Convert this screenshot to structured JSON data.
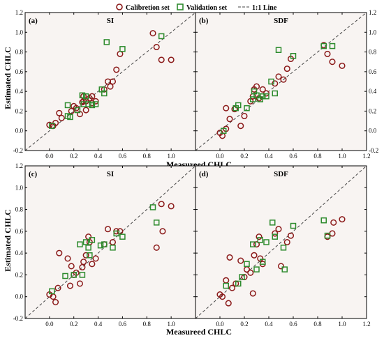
{
  "legend": {
    "calibration_label": "Calibretion set",
    "validation_label": "Validation set",
    "line_label": "1:1 Line"
  },
  "colors": {
    "calibration": "#8b1a1a",
    "validation": "#2e8b2e",
    "panel_bg": "#f8f4f2",
    "line": "#444444"
  },
  "axes": {
    "xlabel": "Measureed CHLC",
    "ylabel": "Estimated CHLC"
  },
  "chart_data": [
    {
      "type": "scatter",
      "panel": "(a)",
      "title": "SI",
      "xlim": [
        -0.2,
        1.2
      ],
      "ylim": [
        -0.2,
        1.2
      ],
      "xticks": [
        "0.0",
        "0.2",
        "0.4",
        "0.6",
        "0.8",
        "1.0"
      ],
      "yticks": [
        "-0.2",
        "0.0",
        "0.2",
        "0.4",
        "0.6",
        "0.8",
        "1.0",
        "1.2"
      ],
      "series": [
        {
          "name": "Calibretion set",
          "marker": "circle",
          "x": [
            0.0,
            0.03,
            0.05,
            0.08,
            0.1,
            0.18,
            0.2,
            0.22,
            0.25,
            0.27,
            0.28,
            0.3,
            0.3,
            0.33,
            0.35,
            0.38,
            0.45,
            0.48,
            0.5,
            0.52,
            0.55,
            0.58,
            0.85,
            0.88,
            0.92,
            1.0,
            0.35,
            0.28
          ],
          "y": [
            0.06,
            0.05,
            0.08,
            0.18,
            0.13,
            0.2,
            0.25,
            0.23,
            0.17,
            0.29,
            0.35,
            0.21,
            0.3,
            0.33,
            0.28,
            0.3,
            0.42,
            0.5,
            0.45,
            0.5,
            0.62,
            0.78,
            0.99,
            0.85,
            0.72,
            0.72,
            0.35,
            0.3
          ]
        },
        {
          "name": "Validation set",
          "marker": "square",
          "x": [
            0.02,
            0.15,
            0.15,
            0.17,
            0.23,
            0.27,
            0.28,
            0.3,
            0.32,
            0.35,
            0.38,
            0.43,
            0.45,
            0.47,
            0.6,
            0.92
          ],
          "y": [
            0.05,
            0.15,
            0.26,
            0.14,
            0.21,
            0.36,
            0.27,
            0.35,
            0.27,
            0.26,
            0.27,
            0.42,
            0.38,
            0.9,
            0.83,
            0.96
          ]
        }
      ]
    },
    {
      "type": "scatter",
      "panel": "(b)",
      "title": "SDF",
      "xlim": [
        -0.2,
        1.2
      ],
      "ylim": [
        -0.2,
        1.2
      ],
      "xticks": [
        "0.0",
        "0.2",
        "0.4",
        "0.6",
        "0.8",
        "1.0"
      ],
      "yticks": [
        "-0.2",
        "0.0",
        "0.2",
        "0.4",
        "0.6",
        "0.8",
        "1.0",
        "1.2"
      ],
      "series": [
        {
          "name": "Calibretion set",
          "marker": "circle",
          "x": [
            0.0,
            0.02,
            0.05,
            0.05,
            0.08,
            0.12,
            0.17,
            0.2,
            0.25,
            0.27,
            0.28,
            0.3,
            0.32,
            0.35,
            0.38,
            0.45,
            0.48,
            0.52,
            0.55,
            0.58,
            0.85,
            0.88,
            0.92,
            1.0
          ],
          "y": [
            -0.02,
            -0.05,
            0.02,
            0.23,
            0.12,
            0.22,
            0.05,
            0.15,
            0.3,
            0.35,
            0.42,
            0.45,
            0.33,
            0.42,
            0.38,
            0.48,
            0.55,
            0.52,
            0.63,
            0.73,
            0.87,
            0.78,
            0.7,
            0.66
          ]
        },
        {
          "name": "Validation set",
          "marker": "square",
          "x": [
            0.03,
            0.13,
            0.15,
            0.22,
            0.27,
            0.28,
            0.3,
            0.33,
            0.35,
            0.38,
            0.42,
            0.45,
            0.48,
            0.6,
            0.85,
            0.92
          ],
          "y": [
            0.0,
            0.23,
            0.26,
            0.23,
            0.32,
            0.4,
            0.36,
            0.32,
            0.35,
            0.35,
            0.5,
            0.38,
            0.82,
            0.76,
            0.86,
            0.86
          ]
        }
      ]
    },
    {
      "type": "scatter",
      "panel": "(c)",
      "title": "SI",
      "xlim": [
        -0.2,
        1.2
      ],
      "ylim": [
        -0.2,
        1.2
      ],
      "xticks": [
        "0.0",
        "0.2",
        "0.4",
        "0.6",
        "0.8",
        "1.0"
      ],
      "yticks": [
        "-0.2",
        "0.0",
        "0.2",
        "0.4",
        "0.6",
        "0.8",
        "1.0",
        "1.2"
      ],
      "series": [
        {
          "name": "Calibretion set",
          "marker": "circle",
          "x": [
            0.0,
            0.03,
            0.05,
            0.07,
            0.08,
            0.15,
            0.17,
            0.18,
            0.2,
            0.22,
            0.25,
            0.27,
            0.28,
            0.3,
            0.32,
            0.33,
            0.35,
            0.38,
            0.45,
            0.48,
            0.52,
            0.55,
            0.58,
            0.88,
            0.92,
            1.0,
            0.93
          ],
          "y": [
            0.02,
            0.0,
            -0.05,
            0.08,
            0.4,
            0.35,
            0.1,
            0.28,
            0.2,
            0.22,
            0.12,
            0.27,
            0.32,
            0.38,
            0.55,
            0.5,
            0.3,
            0.35,
            0.48,
            0.62,
            0.5,
            0.6,
            0.6,
            0.45,
            0.85,
            0.83,
            0.6
          ]
        },
        {
          "name": "Validation set",
          "marker": "square",
          "x": [
            0.02,
            0.13,
            0.2,
            0.25,
            0.27,
            0.3,
            0.32,
            0.33,
            0.35,
            0.42,
            0.45,
            0.52,
            0.55,
            0.6,
            0.85,
            0.88
          ],
          "y": [
            0.05,
            0.19,
            0.2,
            0.48,
            0.2,
            0.5,
            0.45,
            0.38,
            0.52,
            0.47,
            0.48,
            0.45,
            0.58,
            0.55,
            0.82,
            0.68
          ]
        }
      ]
    },
    {
      "type": "scatter",
      "panel": "(d)",
      "title": "SDF",
      "xlim": [
        -0.2,
        1.2
      ],
      "ylim": [
        -0.2,
        1.2
      ],
      "xticks": [
        "0.0",
        "0.2",
        "0.4",
        "0.6",
        "0.8",
        "1.0"
      ],
      "yticks": [
        "-0.2",
        "0.0",
        "0.2",
        "0.4",
        "0.6",
        "0.8",
        "1.0",
        "1.2"
      ],
      "series": [
        {
          "name": "Calibretion set",
          "marker": "circle",
          "x": [
            0.0,
            0.02,
            0.05,
            0.07,
            0.08,
            0.1,
            0.13,
            0.17,
            0.2,
            0.22,
            0.25,
            0.27,
            0.28,
            0.3,
            0.32,
            0.33,
            0.35,
            0.45,
            0.48,
            0.5,
            0.55,
            0.58,
            0.88,
            0.93,
            1.0,
            0.92
          ],
          "y": [
            0.02,
            0.0,
            0.15,
            -0.06,
            0.36,
            0.08,
            0.12,
            0.33,
            0.18,
            0.25,
            0.22,
            0.03,
            0.38,
            0.48,
            0.55,
            0.35,
            0.3,
            0.58,
            0.62,
            0.28,
            0.5,
            0.56,
            0.55,
            0.68,
            0.71,
            0.58
          ]
        },
        {
          "name": "Validation set",
          "marker": "square",
          "x": [
            0.05,
            0.15,
            0.18,
            0.22,
            0.27,
            0.3,
            0.33,
            0.35,
            0.38,
            0.43,
            0.45,
            0.52,
            0.53,
            0.6,
            0.85,
            0.88
          ],
          "y": [
            0.1,
            0.12,
            0.18,
            0.3,
            0.48,
            0.25,
            0.52,
            0.32,
            0.5,
            0.68,
            0.55,
            0.45,
            0.25,
            0.65,
            0.7,
            0.56
          ]
        }
      ]
    }
  ]
}
